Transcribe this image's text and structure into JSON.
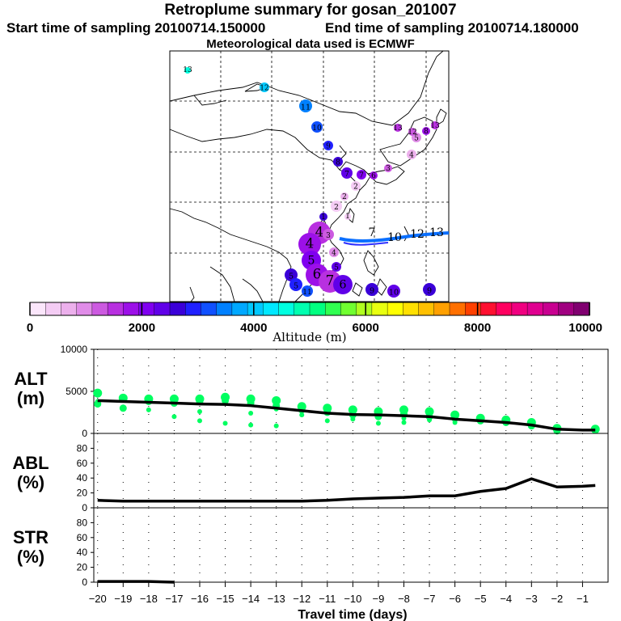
{
  "header": {
    "title": "Retroplume summary for gosan_201007",
    "start_sampling": "Start time of sampling 20100714.150000",
    "end_sampling": "End time of sampling 20100714.180000",
    "met_data": "Meteorological data used is ECMWF"
  },
  "colorbar": {
    "label": "Altitude (m)",
    "ticks": [
      "0",
      "2000",
      "4000",
      "6000",
      "8000",
      "10000"
    ],
    "range": [
      0,
      10000
    ],
    "colors": [
      "#fbe6fb",
      "#f4ccf4",
      "#ecb0ec",
      "#e08ce8",
      "#cc5ae0",
      "#b830e0",
      "#9c10e8",
      "#8000f0",
      "#6000e8",
      "#3a00d8",
      "#2020ff",
      "#1050ff",
      "#0080ff",
      "#00a8ff",
      "#00c8ff",
      "#00e8ff",
      "#00ffe0",
      "#00ffb0",
      "#00ff80",
      "#30ff50",
      "#70ff30",
      "#b0ff20",
      "#e8ff10",
      "#ffff00",
      "#ffe000",
      "#ffc000",
      "#ffa000",
      "#ff7000",
      "#ff4000",
      "#ff1030",
      "#ff0060",
      "#f00080",
      "#e00090",
      "#c80090",
      "#a00080",
      "#800070"
    ]
  },
  "map": {
    "trajectory_labels": [
      "13",
      "12",
      "11",
      "10",
      "9",
      "8",
      "7",
      "6",
      "5",
      "4",
      "3",
      "2",
      "1"
    ],
    "notes": "Retroplume trajectory map over East Asia"
  },
  "chart_data": [
    {
      "type": "line",
      "panel": "ALT",
      "ylabel_line1": "ALT",
      "ylabel_line2": "(m)",
      "ylim": [
        0,
        10000
      ],
      "yticks": [
        "10000",
        "5000",
        "0"
      ],
      "ytick_values": [
        10000,
        5000,
        0
      ],
      "x": [
        -20,
        -19,
        -18,
        -17,
        -16,
        -15,
        -14,
        -13,
        -12,
        -11,
        -10,
        -9,
        -8,
        -7,
        -6,
        -5,
        -4,
        -3,
        -2,
        -1,
        -0.5
      ],
      "series": [
        {
          "name": "median altitude",
          "color": "#000000",
          "values": [
            3900,
            3800,
            3700,
            3600,
            3500,
            3450,
            3300,
            3000,
            2700,
            2400,
            2250,
            2200,
            2100,
            2000,
            1700,
            1500,
            1300,
            1000,
            500,
            400,
            400
          ]
        }
      ],
      "scatter": [
        {
          "x": -20,
          "ys": [
            4800,
            3500,
            3800
          ]
        },
        {
          "x": -19,
          "ys": [
            4200,
            3000
          ]
        },
        {
          "x": -18,
          "ys": [
            4100,
            3800,
            2800
          ]
        },
        {
          "x": -17,
          "ys": [
            4100,
            3600,
            2000
          ]
        },
        {
          "x": -16,
          "ys": [
            4100,
            3800,
            2600,
            1500
          ]
        },
        {
          "x": -15,
          "ys": [
            4300,
            3900,
            1200
          ]
        },
        {
          "x": -14,
          "ys": [
            4100,
            3600,
            2400,
            1000
          ]
        },
        {
          "x": -13,
          "ys": [
            3900,
            3300,
            2900,
            900
          ]
        },
        {
          "x": -12,
          "ys": [
            3200,
            2800,
            2200
          ]
        },
        {
          "x": -11,
          "ys": [
            3000,
            2500,
            1500
          ]
        },
        {
          "x": -10,
          "ys": [
            2800,
            2200,
            1700
          ]
        },
        {
          "x": -9,
          "ys": [
            2600,
            2000,
            1200
          ]
        },
        {
          "x": -8,
          "ys": [
            2800,
            2300,
            1800,
            1300
          ]
        },
        {
          "x": -7,
          "ys": [
            2600,
            2000,
            1600
          ]
        },
        {
          "x": -6,
          "ys": [
            2200,
            1800,
            1300
          ]
        },
        {
          "x": -5,
          "ys": [
            1800,
            1500
          ]
        },
        {
          "x": -4,
          "ys": [
            1600,
            1300
          ]
        },
        {
          "x": -3,
          "ys": [
            1300,
            900
          ]
        },
        {
          "x": -2,
          "ys": [
            600,
            300
          ]
        },
        {
          "x": -0.5,
          "ys": [
            500
          ]
        }
      ],
      "point_color": "#00ff60"
    },
    {
      "type": "line",
      "panel": "ABL",
      "ylabel_line1": "ABL",
      "ylabel_line2": "(%)",
      "ylim": [
        0,
        100
      ],
      "yticks": [
        "80",
        "60",
        "40",
        "20",
        "0"
      ],
      "ytick_values": [
        80,
        60,
        40,
        20,
        0
      ],
      "x": [
        -20,
        -19,
        -18,
        -17,
        -16,
        -15,
        -14,
        -13,
        -12,
        -11,
        -10,
        -9,
        -8,
        -7,
        -6,
        -5,
        -4,
        -3,
        -2,
        -1,
        -0.5
      ],
      "series": [
        {
          "name": "fraction in ABL",
          "color": "#000000",
          "values": [
            10,
            9,
            9,
            9,
            9,
            9,
            9,
            9,
            9,
            10,
            12,
            13,
            14,
            16,
            16,
            22,
            26,
            39,
            28,
            29,
            30
          ]
        }
      ]
    },
    {
      "type": "line",
      "panel": "STR",
      "ylabel_line1": "STR",
      "ylabel_line2": "(%)",
      "ylim": [
        0,
        100
      ],
      "yticks": [
        "80",
        "60",
        "40",
        "20",
        "0"
      ],
      "ytick_values": [
        80,
        60,
        40,
        20,
        0
      ],
      "x": [
        -20,
        -19,
        -18,
        -17
      ],
      "series": [
        {
          "name": "fraction in stratosphere",
          "color": "#000000",
          "values": [
            1,
            1,
            1,
            0
          ]
        }
      ]
    }
  ],
  "xaxis": {
    "label": "Travel time (days)",
    "ticks": [
      "−20",
      "−19",
      "−18",
      "−17",
      "−16",
      "−15",
      "−14",
      "−13",
      "−12",
      "−11",
      "−10",
      "−9",
      "−8",
      "−7",
      "−6",
      "−5",
      "−4",
      "−3",
      "−2",
      "−1"
    ],
    "tick_values": [
      -20,
      -19,
      -18,
      -17,
      -16,
      -15,
      -14,
      -13,
      -12,
      -11,
      -10,
      -9,
      -8,
      -7,
      -6,
      -5,
      -4,
      -3,
      -2,
      -1
    ],
    "range": [
      -20.15,
      0
    ]
  }
}
